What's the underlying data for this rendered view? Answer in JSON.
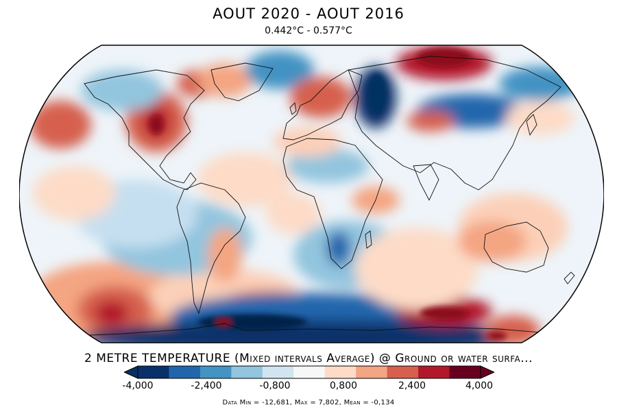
{
  "title": "AOUT 2020 - AOUT 2016",
  "subtitle": "0.442°C - 0.577°C",
  "variable_label": "2 METRE TEMPERATURE (Mixed intervals Average) @ Ground or water surfa...",
  "colorbar": {
    "tick_labels": [
      "-4,000",
      "-2,400",
      "-0,800",
      "0,800",
      "2,400",
      "4,000"
    ],
    "colors": [
      "#08306b",
      "#2166ac",
      "#4393c3",
      "#92c5de",
      "#d1e5f0",
      "#f7f7f7",
      "#fddbc7",
      "#f4a582",
      "#d6604d",
      "#b2182b",
      "#67001f"
    ],
    "under_color": "#053061",
    "over_color": "#67001f"
  },
  "stats_text": "Data Min = -12,681, Max = 7,802, Mean = -0,134",
  "map": {
    "projection": "Robinson",
    "coastlines": true,
    "ocean_background": "#eaf2f8"
  }
}
